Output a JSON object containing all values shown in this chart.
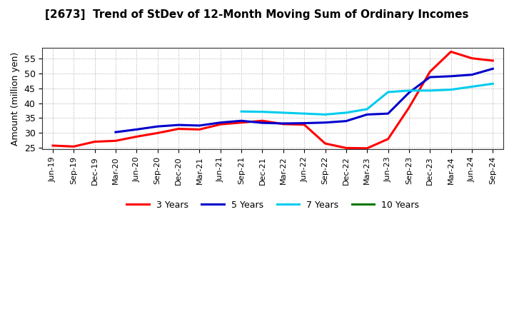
{
  "title": "[2673]  Trend of StDev of 12-Month Moving Sum of Ordinary Incomes",
  "ylabel": "Amount (million yen)",
  "ylim_min": 24.5,
  "ylim_max": 58.5,
  "yticks": [
    25,
    30,
    35,
    40,
    45,
    50,
    55
  ],
  "background_color": "#ffffff",
  "grid_color": "#aaaaaa",
  "legend_labels": [
    "3 Years",
    "5 Years",
    "7 Years",
    "10 Years"
  ],
  "legend_colors": [
    "#ff0000",
    "#0000cc",
    "#00ccee",
    "#007700"
  ],
  "x_labels": [
    "Jun-19",
    "Sep-19",
    "Dec-19",
    "Mar-20",
    "Jun-20",
    "Sep-20",
    "Dec-20",
    "Mar-21",
    "Jun-21",
    "Sep-21",
    "Dec-21",
    "Mar-22",
    "Jun-22",
    "Sep-22",
    "Dec-22",
    "Mar-23",
    "Jun-23",
    "Sep-23",
    "Dec-23",
    "Mar-24",
    "Jun-24",
    "Sep-24"
  ],
  "series_3y_x": [
    0,
    1,
    2,
    3,
    4,
    5,
    6,
    7,
    8,
    9,
    10,
    11,
    12,
    13,
    14,
    15,
    16,
    17,
    18,
    19,
    20,
    21
  ],
  "series_3y_y": [
    25.8,
    25.5,
    27.1,
    27.4,
    28.8,
    30.0,
    31.4,
    31.2,
    32.9,
    33.5,
    34.1,
    33.0,
    32.8,
    26.5,
    25.0,
    24.9,
    28.0,
    38.5,
    50.5,
    57.2,
    55.0,
    54.2
  ],
  "series_5y_x": [
    3,
    4,
    5,
    6,
    7,
    8,
    9,
    10,
    11,
    12,
    13,
    14,
    15,
    16,
    17,
    18,
    19,
    20,
    21
  ],
  "series_5y_y": [
    30.3,
    31.2,
    32.2,
    32.7,
    32.5,
    33.5,
    34.1,
    33.4,
    33.2,
    33.3,
    33.5,
    34.0,
    36.2,
    36.5,
    43.5,
    48.7,
    49.0,
    49.5,
    51.5
  ],
  "series_7y_x": [
    9,
    10,
    11,
    12,
    13,
    14,
    15,
    16,
    17,
    18,
    19,
    20,
    21
  ],
  "series_7y_y": [
    37.2,
    37.1,
    36.8,
    36.5,
    36.2,
    36.8,
    38.0,
    43.7,
    44.2,
    44.2,
    44.5,
    45.5,
    46.5
  ],
  "series_10y_x": [],
  "series_10y_y": []
}
